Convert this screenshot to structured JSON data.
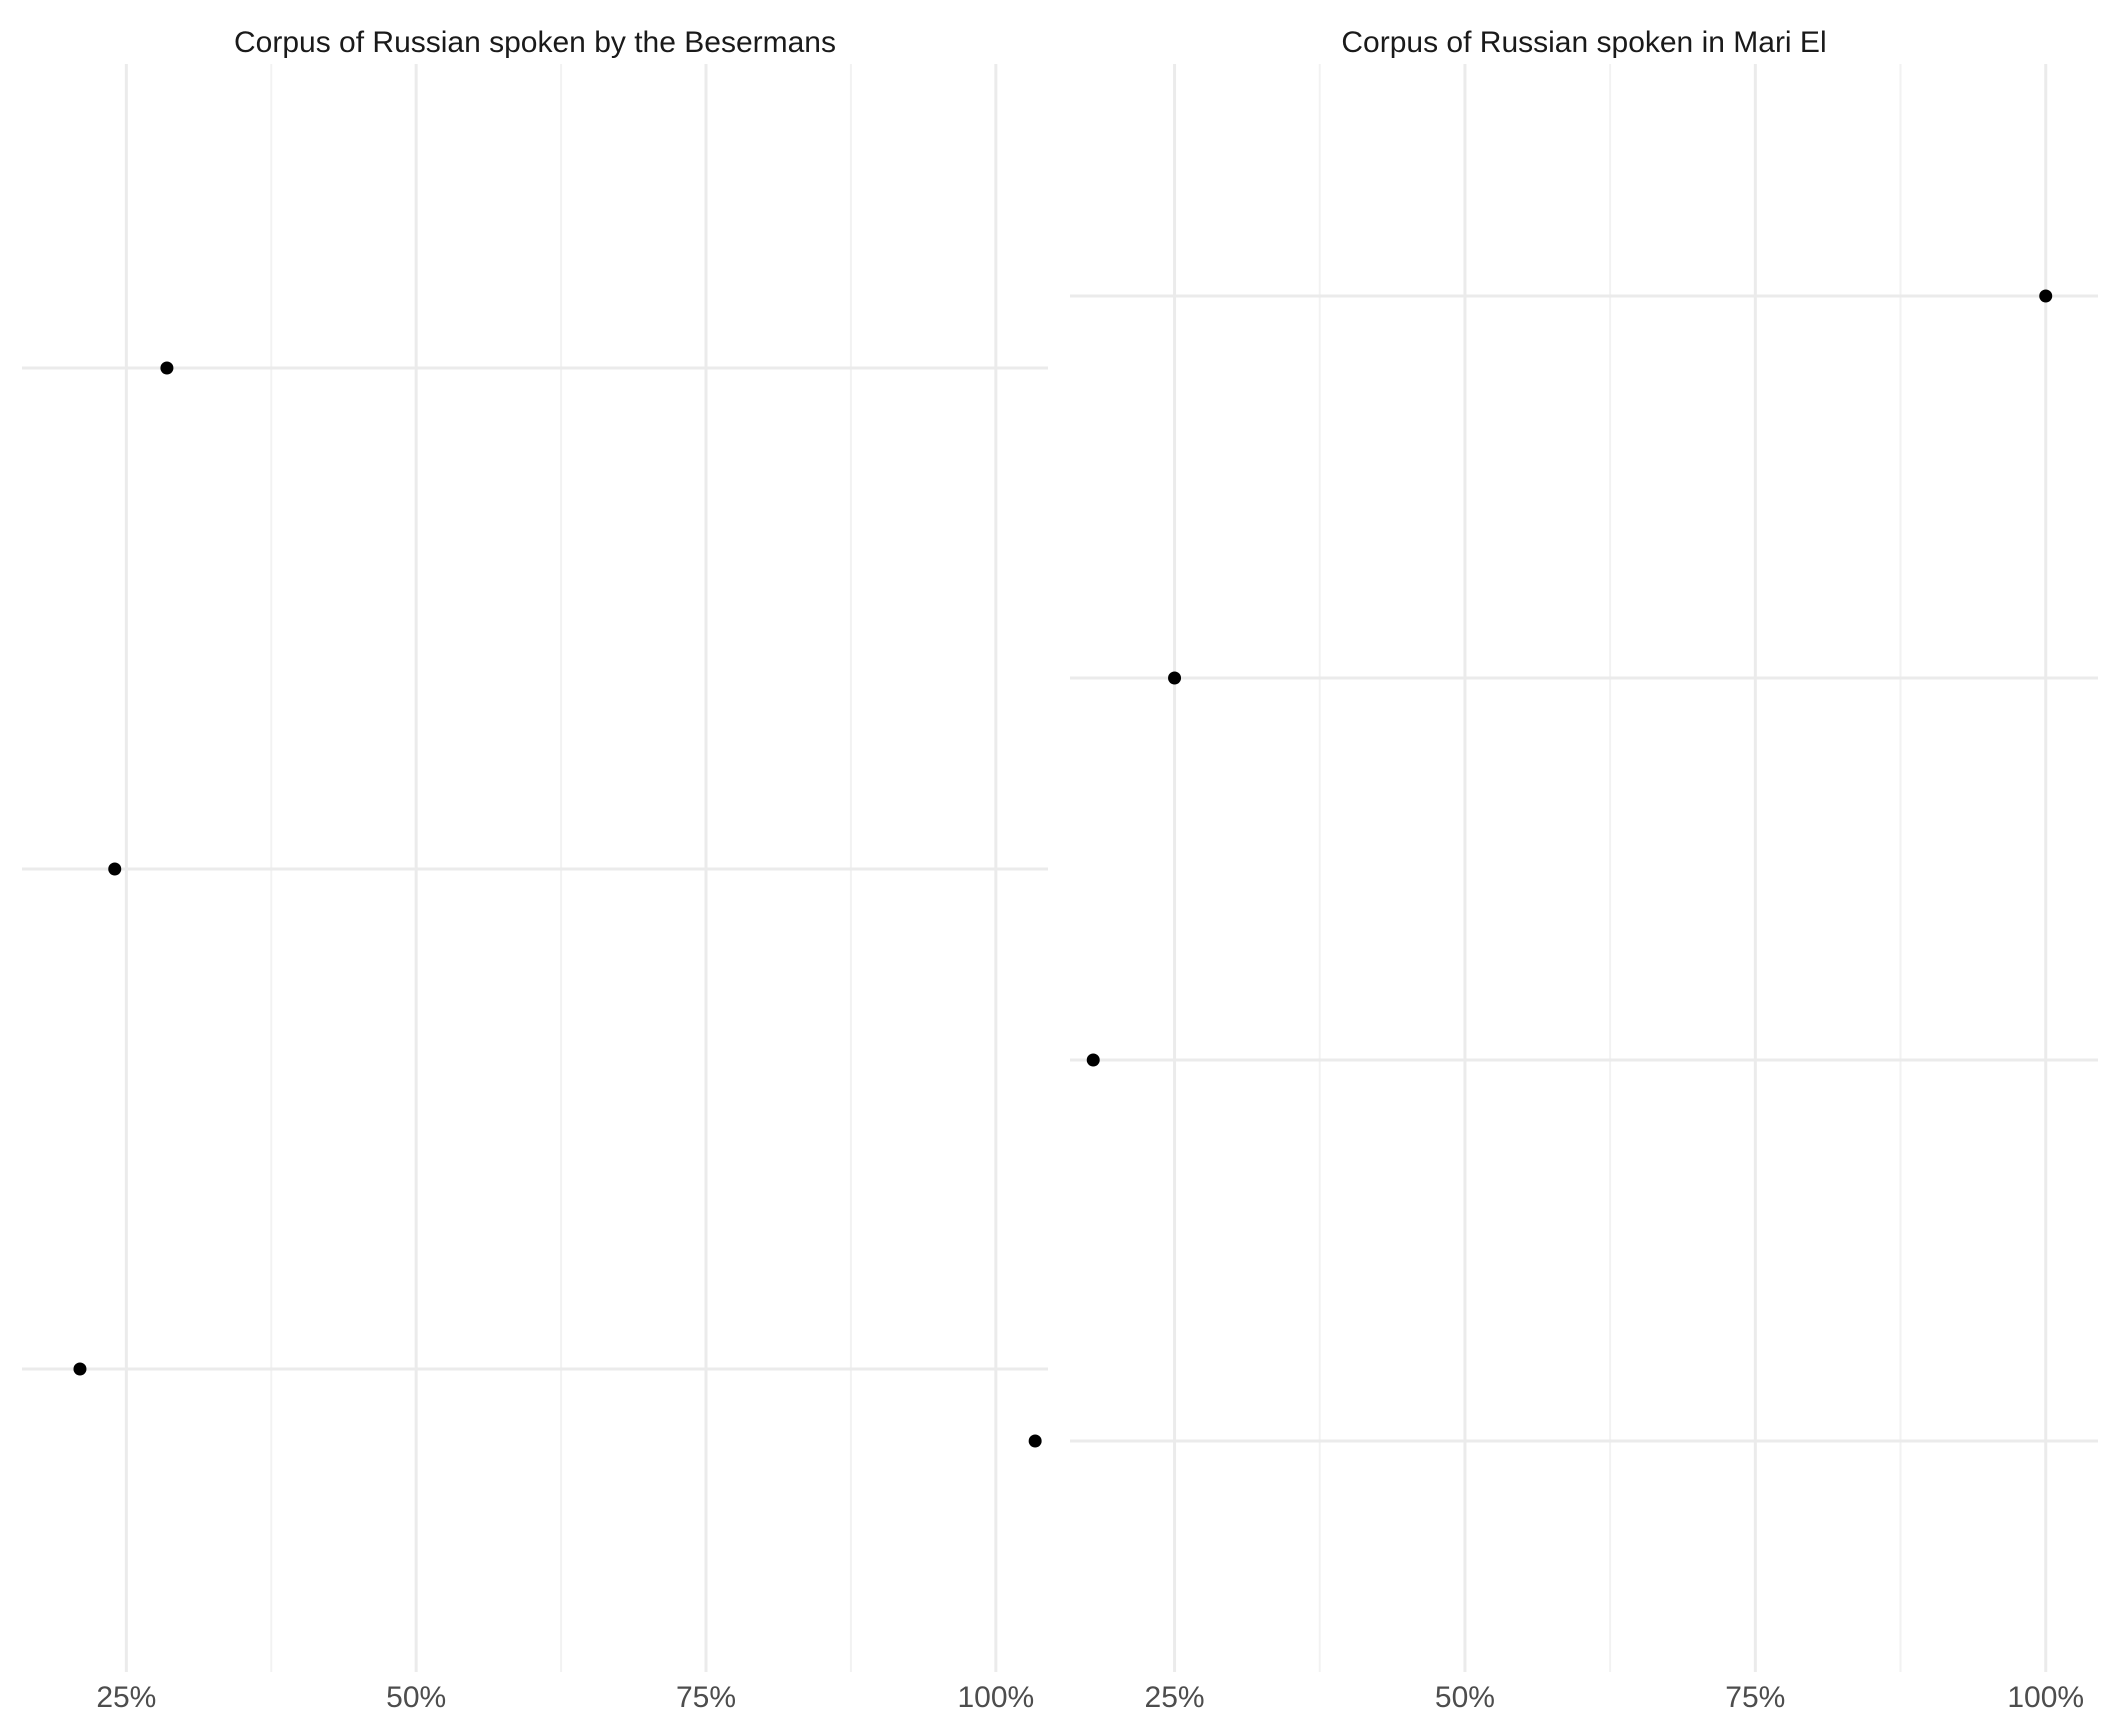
{
  "chart_data": [
    {
      "type": "scatter",
      "title": "Corpus of Russian spoken by the Besermans",
      "xlabel": "",
      "ylabel": "",
      "x_tick_labels": [
        "25%",
        "50%",
        "75%",
        "100%"
      ],
      "x_ticks": [
        0.25,
        0.5,
        0.75,
        1.0
      ],
      "xlim": [
        0.16,
        1.045
      ],
      "y_categories": 3,
      "points": [
        {
          "row": 3,
          "x": 0.285
        },
        {
          "row": 2,
          "x": 0.24
        },
        {
          "row": 1,
          "x": 0.21
        }
      ],
      "grid": true
    },
    {
      "type": "scatter",
      "title": "Corpus of Russian spoken in Mari El",
      "xlabel": "",
      "ylabel": "",
      "x_tick_labels": [
        "25%",
        "50%",
        "75%",
        "100%"
      ],
      "x_ticks": [
        0.25,
        0.5,
        0.75,
        1.0
      ],
      "xlim": [
        0.16,
        1.045
      ],
      "y_categories": 4,
      "points": [
        {
          "row": 4,
          "x": 1.0
        },
        {
          "row": 3,
          "x": 0.25
        },
        {
          "row": 2,
          "x": 0.18
        },
        {
          "row": 1,
          "x": 0.13
        }
      ],
      "grid": true
    }
  ],
  "colors": {
    "point": "#000000",
    "grid_major": "#ebebeb",
    "grid_minor": "#f2f2f2",
    "title": "#1a1a1a",
    "tick_label": "#4d4d4d"
  }
}
